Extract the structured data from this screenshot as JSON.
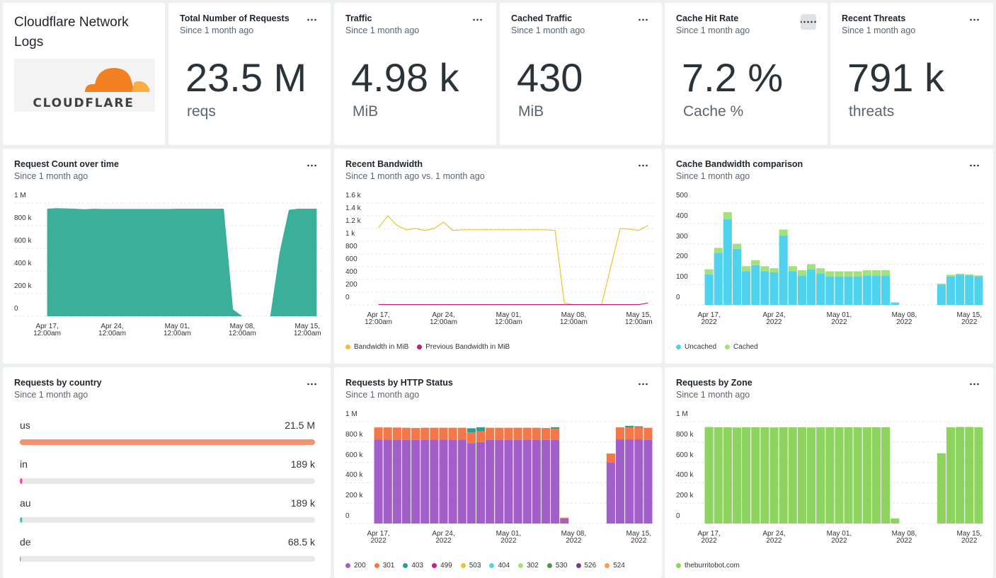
{
  "dashboard": {
    "title": "Cloudflare Network Logs",
    "logo_text": "CLOUDFLARE"
  },
  "billboards": [
    {
      "title": "Total Number of Requests",
      "subtitle": "Since 1 month ago",
      "value": "23.5 M",
      "unit": "reqs"
    },
    {
      "title": "Traffic",
      "subtitle": "Since 1 month ago",
      "value": "4.98 k",
      "unit": "MiB"
    },
    {
      "title": "Cached Traffic",
      "subtitle": "Since 1 month ago",
      "value": "430",
      "unit": "MiB"
    },
    {
      "title": "Cache Hit Rate",
      "subtitle": "Since 1 month ago",
      "value": "7.2 %",
      "unit": "Cache %"
    },
    {
      "title": "Recent Threats",
      "subtitle": "Since 1 month ago",
      "value": "791 k",
      "unit": "threats"
    }
  ],
  "chart_data": [
    {
      "type": "area",
      "title": "Request Count over time",
      "subtitle": "Since 1 month ago",
      "categories": [
        "Apr 17,\n12:00am",
        null,
        null,
        null,
        null,
        null,
        null,
        "Apr 24,\n12:00am",
        null,
        null,
        null,
        null,
        null,
        null,
        "May 01,\n12:00am",
        null,
        null,
        null,
        null,
        null,
        null,
        "May 08,\n12:00am",
        null,
        null,
        null,
        null,
        null,
        null,
        "May 15,\n12:00am",
        null
      ],
      "values": [
        950000,
        955000,
        952000,
        950000,
        945000,
        950000,
        948000,
        948000,
        948000,
        948000,
        948000,
        948000,
        948000,
        948000,
        950000,
        950000,
        950000,
        950000,
        950000,
        950000,
        60000,
        0,
        0,
        0,
        0,
        560000,
        940000,
        950000,
        950000,
        950000
      ],
      "color": "#3aaf9a",
      "ylim": [
        0,
        1000000
      ],
      "yticks": [
        0,
        {
          "value": 200000,
          "label": "200 k"
        },
        {
          "value": 400000,
          "label": "400 k"
        },
        {
          "value": 600000,
          "label": "600 k"
        },
        {
          "value": 800000,
          "label": "800 k"
        },
        {
          "value": 1000000,
          "label": "1 M"
        }
      ],
      "grid": true
    },
    {
      "type": "line",
      "title": "Recent Bandwidth",
      "subtitle": "Since 1 month ago vs. 1 month ago",
      "categories": [
        "Apr 17,\n12:00am",
        null,
        null,
        null,
        null,
        null,
        null,
        "Apr 24,\n12:00am",
        null,
        null,
        null,
        null,
        null,
        null,
        "May 01,\n12:00am",
        null,
        null,
        null,
        null,
        null,
        null,
        "May 08,\n12:00am",
        null,
        null,
        null,
        null,
        null,
        null,
        "May 15,\n12:00am",
        null
      ],
      "series": [
        {
          "name": "Bandwidth in MiB",
          "color": "#f2c12e",
          "values": [
            1210,
            1400,
            1250,
            1180,
            1200,
            1170,
            1200,
            1300,
            1170,
            1180,
            1180,
            1180,
            1180,
            1180,
            1180,
            1180,
            1180,
            1180,
            1180,
            1170,
            30,
            5,
            5,
            5,
            5,
            600,
            1200,
            1190,
            1170,
            1250
          ]
        },
        {
          "name": "Previous Bandwidth in MiB",
          "color": "#c2187f",
          "values": [
            5,
            5,
            5,
            5,
            5,
            5,
            5,
            5,
            5,
            5,
            5,
            5,
            5,
            5,
            5,
            5,
            5,
            5,
            5,
            5,
            5,
            5,
            5,
            5,
            5,
            5,
            5,
            5,
            5,
            30
          ]
        }
      ],
      "ylim": [
        0,
        1600
      ],
      "yticks": [
        0,
        200,
        400,
        600,
        800,
        {
          "value": 1000,
          "label": "1 k"
        },
        {
          "value": 1200,
          "label": "1.2 k"
        },
        {
          "value": 1400,
          "label": "1.4 k"
        },
        {
          "value": 1600,
          "label": "1.6 k"
        }
      ],
      "grid": true
    },
    {
      "type": "bar",
      "stacked": true,
      "title": "Cache Bandwidth comparison",
      "subtitle": "Since 1 month ago",
      "categories": [
        "Apr 17,\n2022",
        null,
        null,
        null,
        null,
        null,
        null,
        "Apr 24,\n2022",
        null,
        null,
        null,
        null,
        null,
        null,
        "May 01,\n2022",
        null,
        null,
        null,
        null,
        null,
        null,
        "May 08,\n2022",
        null,
        null,
        null,
        null,
        null,
        null,
        "May 15,\n2022",
        null
      ],
      "series": [
        {
          "name": "Uncached",
          "color": "#4fd2ee",
          "values": [
            150,
            255,
            420,
            275,
            165,
            195,
            165,
            160,
            340,
            165,
            145,
            175,
            155,
            140,
            140,
            140,
            140,
            145,
            145,
            145,
            10,
            0,
            0,
            0,
            0,
            100,
            140,
            148,
            145,
            140
          ]
        },
        {
          "name": "Cached",
          "color": "#a4e07d",
          "values": [
            25,
            25,
            35,
            25,
            25,
            25,
            25,
            20,
            30,
            25,
            25,
            25,
            25,
            25,
            25,
            25,
            25,
            25,
            25,
            25,
            3,
            0,
            0,
            0,
            0,
            5,
            8,
            5,
            5,
            5
          ]
        }
      ],
      "ylim": [
        0,
        500
      ],
      "yticks": [
        0,
        100,
        200,
        300,
        400,
        500
      ],
      "grid": true
    },
    {
      "type": "bar_list",
      "title": "Requests by country",
      "subtitle": "Since 1 month ago",
      "categories": [
        "us",
        "in",
        "au",
        "de"
      ],
      "values": [
        21500000,
        189000,
        189000,
        68500
      ],
      "value_labels": [
        "21.5 M",
        "189 k",
        "189 k",
        "68.5 k"
      ],
      "colors": [
        "#f4916e",
        "#e84aa4",
        "#4cc4b8",
        "#8a9aa8"
      ]
    },
    {
      "type": "bar",
      "stacked": true,
      "title": "Requests by HTTP Status",
      "subtitle": "Since 1 month ago",
      "categories": [
        "Apr 17,\n2022",
        null,
        null,
        null,
        null,
        null,
        null,
        "Apr 24,\n2022",
        null,
        null,
        null,
        null,
        null,
        null,
        "May 01,\n2022",
        null,
        null,
        null,
        null,
        null,
        null,
        "May 08,\n2022",
        null,
        null,
        null,
        null,
        null,
        null,
        "May 15,\n2022",
        null
      ],
      "series": [
        {
          "name": "200",
          "color": "#a35fc9",
          "values": [
            825000,
            825000,
            822000,
            822000,
            820000,
            822000,
            825000,
            825000,
            822000,
            825000,
            790000,
            800000,
            822000,
            822000,
            822000,
            822000,
            822000,
            822000,
            820000,
            820000,
            50000,
            0,
            0,
            0,
            0,
            597000,
            826000,
            826000,
            826000,
            822000
          ]
        },
        {
          "name": "301",
          "color": "#f37748",
          "values": [
            118000,
            118000,
            120000,
            118000,
            118000,
            118000,
            115000,
            115000,
            118000,
            115000,
            105000,
            105000,
            118000,
            118000,
            118000,
            118000,
            118000,
            118000,
            118000,
            110000,
            8000,
            0,
            0,
            0,
            0,
            90000,
            118000,
            118000,
            118000,
            118000
          ]
        },
        {
          "name": "403",
          "color": "#2b9e90",
          "values": [
            0,
            0,
            0,
            0,
            0,
            0,
            0,
            0,
            0,
            0,
            40000,
            40000,
            0,
            0,
            0,
            0,
            0,
            0,
            0,
            15000,
            0,
            0,
            0,
            0,
            0,
            0,
            0,
            15000,
            10000,
            0
          ]
        },
        {
          "name": "499",
          "color": "#c21e83",
          "values": [
            0,
            0,
            0,
            0,
            0,
            0,
            0,
            0,
            0,
            0,
            0,
            0,
            0,
            0,
            0,
            0,
            0,
            0,
            0,
            0,
            0,
            0,
            0,
            0,
            0,
            0,
            0,
            0,
            0,
            0
          ]
        },
        {
          "name": "503",
          "color": "#f2c12e",
          "values": [
            0,
            0,
            0,
            0,
            0,
            0,
            0,
            0,
            0,
            0,
            0,
            0,
            0,
            0,
            0,
            0,
            0,
            0,
            0,
            0,
            0,
            0,
            0,
            0,
            0,
            0,
            0,
            0,
            0,
            0
          ]
        },
        {
          "name": "404",
          "color": "#4fd2ee",
          "values": [
            0,
            0,
            0,
            0,
            0,
            0,
            0,
            0,
            0,
            0,
            0,
            0,
            0,
            0,
            0,
            0,
            0,
            0,
            0,
            0,
            0,
            0,
            0,
            0,
            0,
            0,
            0,
            0,
            0,
            0
          ]
        },
        {
          "name": "302",
          "color": "#a4e07d",
          "values": [
            0,
            0,
            0,
            0,
            0,
            0,
            0,
            0,
            0,
            0,
            0,
            0,
            0,
            0,
            0,
            0,
            0,
            0,
            0,
            0,
            0,
            0,
            0,
            0,
            0,
            0,
            0,
            0,
            0,
            0
          ]
        },
        {
          "name": "530",
          "color": "#5c8f3f",
          "values": [
            0,
            0,
            0,
            0,
            0,
            0,
            0,
            0,
            0,
            0,
            0,
            0,
            0,
            0,
            0,
            0,
            0,
            0,
            0,
            0,
            0,
            0,
            0,
            0,
            0,
            0,
            0,
            0,
            0,
            0
          ]
        },
        {
          "name": "526",
          "color": "#6e3f8f",
          "values": [
            0,
            0,
            0,
            0,
            0,
            0,
            0,
            0,
            0,
            0,
            0,
            0,
            0,
            0,
            0,
            0,
            0,
            0,
            0,
            0,
            0,
            0,
            0,
            0,
            0,
            0,
            0,
            0,
            0,
            0
          ]
        },
        {
          "name": "524",
          "color": "#f79d5c",
          "values": [
            0,
            0,
            0,
            0,
            0,
            0,
            0,
            0,
            0,
            0,
            0,
            0,
            0,
            0,
            0,
            0,
            0,
            0,
            0,
            0,
            0,
            0,
            0,
            0,
            0,
            0,
            0,
            0,
            0,
            0
          ]
        }
      ],
      "ylim": [
        0,
        1000000
      ],
      "yticks": [
        0,
        {
          "value": 200000,
          "label": "200 k"
        },
        {
          "value": 400000,
          "label": "400 k"
        },
        {
          "value": 600000,
          "label": "600 k"
        },
        {
          "value": 800000,
          "label": "800 k"
        },
        {
          "value": 1000000,
          "label": "1 M"
        }
      ],
      "grid": true
    },
    {
      "type": "bar",
      "title": "Requests by Zone",
      "subtitle": "Since 1 month ago",
      "categories": [
        "Apr 17,\n2022",
        null,
        null,
        null,
        null,
        null,
        null,
        "Apr 24,\n2022",
        null,
        null,
        null,
        null,
        null,
        null,
        "May 01,\n2022",
        null,
        null,
        null,
        null,
        null,
        null,
        "May 08,\n2022",
        null,
        null,
        null,
        null,
        null,
        null,
        "May 15,\n2022",
        null
      ],
      "series": [
        {
          "name": "theburritobot.com",
          "color": "#8dd35f",
          "values": [
            948000,
            945000,
            945000,
            943000,
            945000,
            945000,
            945000,
            943000,
            945000,
            945000,
            945000,
            943000,
            945000,
            945000,
            945000,
            945000,
            945000,
            945000,
            945000,
            945000,
            50000,
            0,
            0,
            0,
            0,
            690000,
            945000,
            948000,
            948000,
            945000
          ]
        }
      ],
      "ylim": [
        0,
        1000000
      ],
      "yticks": [
        0,
        {
          "value": 200000,
          "label": "200 k"
        },
        {
          "value": 400000,
          "label": "400 k"
        },
        {
          "value": 600000,
          "label": "600 k"
        },
        {
          "value": 800000,
          "label": "800 k"
        },
        {
          "value": 1000000,
          "label": "1 M"
        }
      ],
      "grid": true
    }
  ]
}
